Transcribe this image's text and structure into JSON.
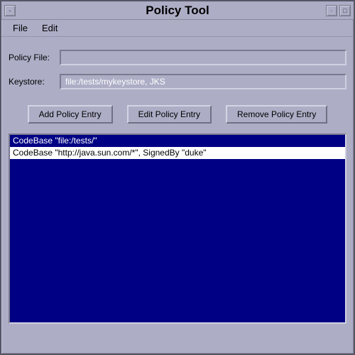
{
  "window": {
    "title": "Policy Tool"
  },
  "menubar": {
    "file": "File",
    "edit": "Edit"
  },
  "fields": {
    "policy_file_label": "Policy File:",
    "policy_file_value": "",
    "keystore_label": "Keystore:",
    "keystore_value": "file:/tests/mykeystore, JKS"
  },
  "buttons": {
    "add": "Add Policy Entry",
    "edit": "Edit Policy Entry",
    "remove": "Remove Policy Entry"
  },
  "list": {
    "items": [
      {
        "text": "CodeBase \"file:/tests/\"",
        "selected": false
      },
      {
        "text": "CodeBase \"http://java.sun.com/*\", SignedBy \"duke\"",
        "selected": true
      }
    ]
  },
  "colors": {
    "window_bg": "#adadc6",
    "list_bg": "#000084",
    "list_fg": "#ffffff",
    "selected_bg": "#ffffff",
    "selected_fg": "#000000"
  }
}
